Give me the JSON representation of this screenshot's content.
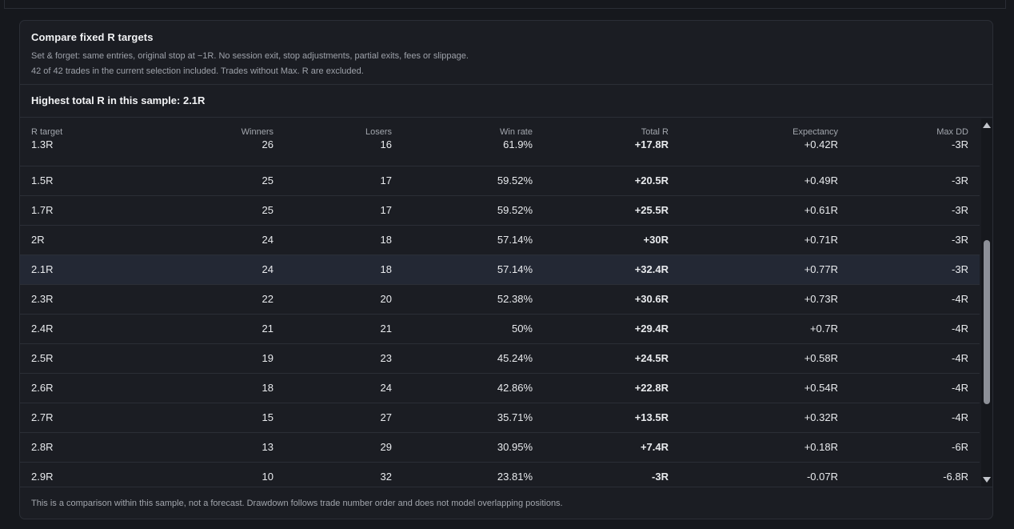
{
  "card": {
    "title": "Compare fixed R targets",
    "subtitle_1": "Set & forget: same entries, original stop at −1R. No session exit, stop adjustments, partial exits, fees or slippage.",
    "subtitle_2": "42 of 42 trades in the current selection included. Trades without Max. R are excluded.",
    "best_line": "Highest total R in this sample: 2.1R",
    "footer_note": "This is a comparison within this sample, not a forecast. Drawdown follows trade number order and does not model overlapping positions."
  },
  "table": {
    "headers": [
      "R target",
      "Winners",
      "Losers",
      "Win rate",
      "Total R",
      "Expectancy",
      "Max DD"
    ],
    "highlighted_row": "2.1R",
    "rows": [
      [
        "1.3R",
        "26",
        "16",
        "61.9%",
        "+17.8R",
        "+0.42R",
        "-3R"
      ],
      [
        "1.5R",
        "25",
        "17",
        "59.52%",
        "+20.5R",
        "+0.49R",
        "-3R"
      ],
      [
        "1.7R",
        "25",
        "17",
        "59.52%",
        "+25.5R",
        "+0.61R",
        "-3R"
      ],
      [
        "2R",
        "24",
        "18",
        "57.14%",
        "+30R",
        "+0.71R",
        "-3R"
      ],
      [
        "2.1R",
        "24",
        "18",
        "57.14%",
        "+32.4R",
        "+0.77R",
        "-3R"
      ],
      [
        "2.3R",
        "22",
        "20",
        "52.38%",
        "+30.6R",
        "+0.73R",
        "-4R"
      ],
      [
        "2.4R",
        "21",
        "21",
        "50%",
        "+29.4R",
        "+0.7R",
        "-4R"
      ],
      [
        "2.5R",
        "19",
        "23",
        "45.24%",
        "+24.5R",
        "+0.58R",
        "-4R"
      ],
      [
        "2.6R",
        "18",
        "24",
        "42.86%",
        "+22.8R",
        "+0.54R",
        "-4R"
      ],
      [
        "2.7R",
        "15",
        "27",
        "35.71%",
        "+13.5R",
        "+0.32R",
        "-4R"
      ],
      [
        "2.8R",
        "13",
        "29",
        "30.95%",
        "+7.4R",
        "+0.18R",
        "-6R"
      ],
      [
        "2.9R",
        "10",
        "32",
        "23.81%",
        "-3R",
        "-0.07R",
        "-6.8R"
      ]
    ]
  },
  "icons": {
    "scroll_up": "triangle-up-icon",
    "scroll_down": "triangle-down-icon"
  }
}
